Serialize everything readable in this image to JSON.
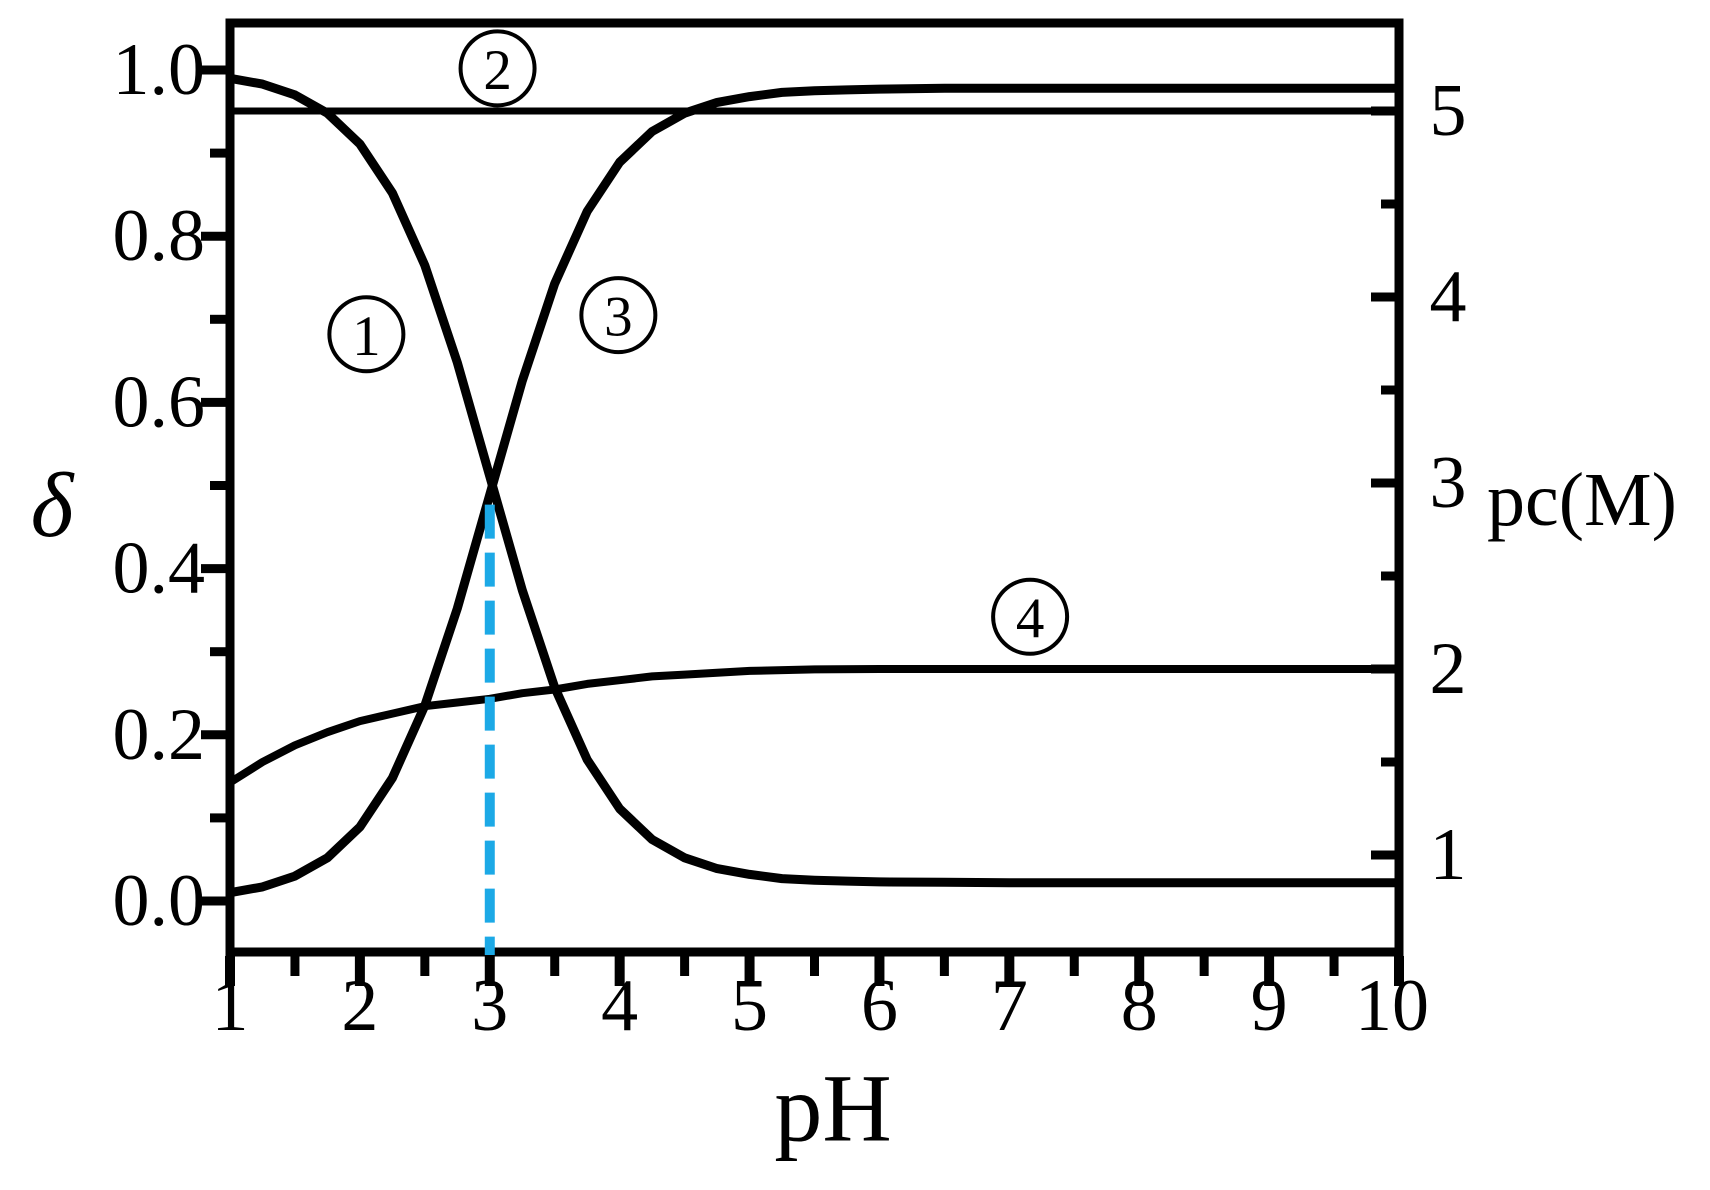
{
  "figure": {
    "background": "#ffffff",
    "line_color": "#000000",
    "dash_color": "#1ca9e6"
  },
  "labels": {
    "y_left": "δ",
    "y_right": "pc(M)",
    "x": "pH"
  },
  "chart_data": {
    "type": "line",
    "title": "",
    "xlabel": "pH",
    "ylabel_left": "δ",
    "ylabel_right": "pc(M)",
    "x_range": [
      1,
      10
    ],
    "y_left_range": [
      0.0,
      1.0
    ],
    "y_right_range": [
      1,
      5
    ],
    "grid": false,
    "x_major_ticks": [
      1,
      2,
      3,
      4,
      5,
      6,
      7,
      8,
      9,
      10
    ],
    "x_major_tick_labels": [
      "1",
      "2",
      "3",
      "4",
      "5",
      "6",
      "7",
      "8",
      "9",
      "10"
    ],
    "x_minor_ticks": [
      1.5,
      2.5,
      3.5,
      4.5,
      5.5,
      6.5,
      7.5,
      8.5,
      9.5
    ],
    "y_left_major_ticks": [
      0.0,
      0.2,
      0.4,
      0.6,
      0.8,
      1.0
    ],
    "y_left_major_tick_labels": [
      "0.0",
      "0.2",
      "0.4",
      "0.6",
      "0.8",
      "1.0"
    ],
    "y_left_minor_ticks": [
      0.1,
      0.3,
      0.5,
      0.7,
      0.9
    ],
    "y_right_major_ticks": [
      1,
      2,
      3,
      4,
      5
    ],
    "y_right_major_tick_labels": [
      "1",
      "2",
      "3",
      "4",
      "5"
    ],
    "y_right_minor_ticks": [
      1.5,
      2.5,
      3.5,
      4.5
    ],
    "series": [
      {
        "name": "curve-1",
        "annotation": "1",
        "axis": "left",
        "points": [
          [
            1,
            0.99
          ],
          [
            1.25,
            0.983
          ],
          [
            1.5,
            0.97
          ],
          [
            1.75,
            0.948
          ],
          [
            2,
            0.911
          ],
          [
            2.25,
            0.852
          ],
          [
            2.5,
            0.765
          ],
          [
            2.75,
            0.648
          ],
          [
            3,
            0.511
          ],
          [
            3.25,
            0.374
          ],
          [
            3.5,
            0.257
          ],
          [
            3.75,
            0.17
          ],
          [
            4,
            0.111
          ],
          [
            4.25,
            0.074
          ],
          [
            4.5,
            0.052
          ],
          [
            4.75,
            0.039
          ],
          [
            5,
            0.032
          ],
          [
            5.25,
            0.027
          ],
          [
            5.5,
            0.025
          ],
          [
            5.75,
            0.024
          ],
          [
            6,
            0.023
          ],
          [
            6.5,
            0.0225
          ],
          [
            7,
            0.022
          ],
          [
            8,
            0.022
          ],
          [
            9,
            0.022
          ],
          [
            10,
            0.022
          ]
        ]
      },
      {
        "name": "curve-2",
        "annotation": "2",
        "axis": "right",
        "points": [
          [
            1,
            5
          ],
          [
            10,
            5
          ]
        ]
      },
      {
        "name": "curve-3",
        "annotation": "3",
        "axis": "left",
        "points": [
          [
            1,
            0.01
          ],
          [
            1.25,
            0.017
          ],
          [
            1.5,
            0.03
          ],
          [
            1.75,
            0.052
          ],
          [
            2,
            0.089
          ],
          [
            2.25,
            0.148
          ],
          [
            2.5,
            0.235
          ],
          [
            2.75,
            0.352
          ],
          [
            3,
            0.489
          ],
          [
            3.25,
            0.626
          ],
          [
            3.5,
            0.743
          ],
          [
            3.75,
            0.83
          ],
          [
            4,
            0.889
          ],
          [
            4.25,
            0.926
          ],
          [
            4.5,
            0.948
          ],
          [
            4.75,
            0.961
          ],
          [
            5,
            0.968
          ],
          [
            5.25,
            0.973
          ],
          [
            5.5,
            0.975
          ],
          [
            5.75,
            0.976
          ],
          [
            6,
            0.977
          ],
          [
            6.5,
            0.978
          ],
          [
            7,
            0.978
          ],
          [
            8,
            0.978
          ],
          [
            9,
            0.978
          ],
          [
            10,
            0.978
          ]
        ]
      },
      {
        "name": "curve-4",
        "annotation": "4",
        "axis": "right",
        "points": [
          [
            1,
            1.39
          ],
          [
            1.25,
            1.5
          ],
          [
            1.5,
            1.59
          ],
          [
            1.75,
            1.66
          ],
          [
            2,
            1.72
          ],
          [
            2.25,
            1.76
          ],
          [
            2.5,
            1.8
          ],
          [
            2.75,
            1.82
          ],
          [
            3,
            1.84
          ],
          [
            3.25,
            1.87
          ],
          [
            3.5,
            1.89
          ],
          [
            3.75,
            1.92
          ],
          [
            4,
            1.94
          ],
          [
            4.25,
            1.96
          ],
          [
            4.5,
            1.97
          ],
          [
            4.75,
            1.98
          ],
          [
            5,
            1.99
          ],
          [
            5.5,
            1.998
          ],
          [
            6,
            2.0
          ],
          [
            7,
            2.0
          ],
          [
            8,
            2.0
          ],
          [
            9,
            2.0
          ],
          [
            10,
            2.0
          ]
        ]
      }
    ],
    "annotations": [
      {
        "text": "1",
        "ph": 2.05,
        "delta": 0.682
      },
      {
        "text": "2",
        "ph": 3.06,
        "delta": 1.002
      },
      {
        "text": "3",
        "ph": 3.99,
        "delta": 0.705
      },
      {
        "text": "4",
        "ph": 7.16,
        "delta": 0.342
      }
    ],
    "dashed_guide": {
      "ph": 3,
      "delta_top": 0.477,
      "reaches_x_axis": true,
      "color": "#1ca9e6"
    }
  }
}
